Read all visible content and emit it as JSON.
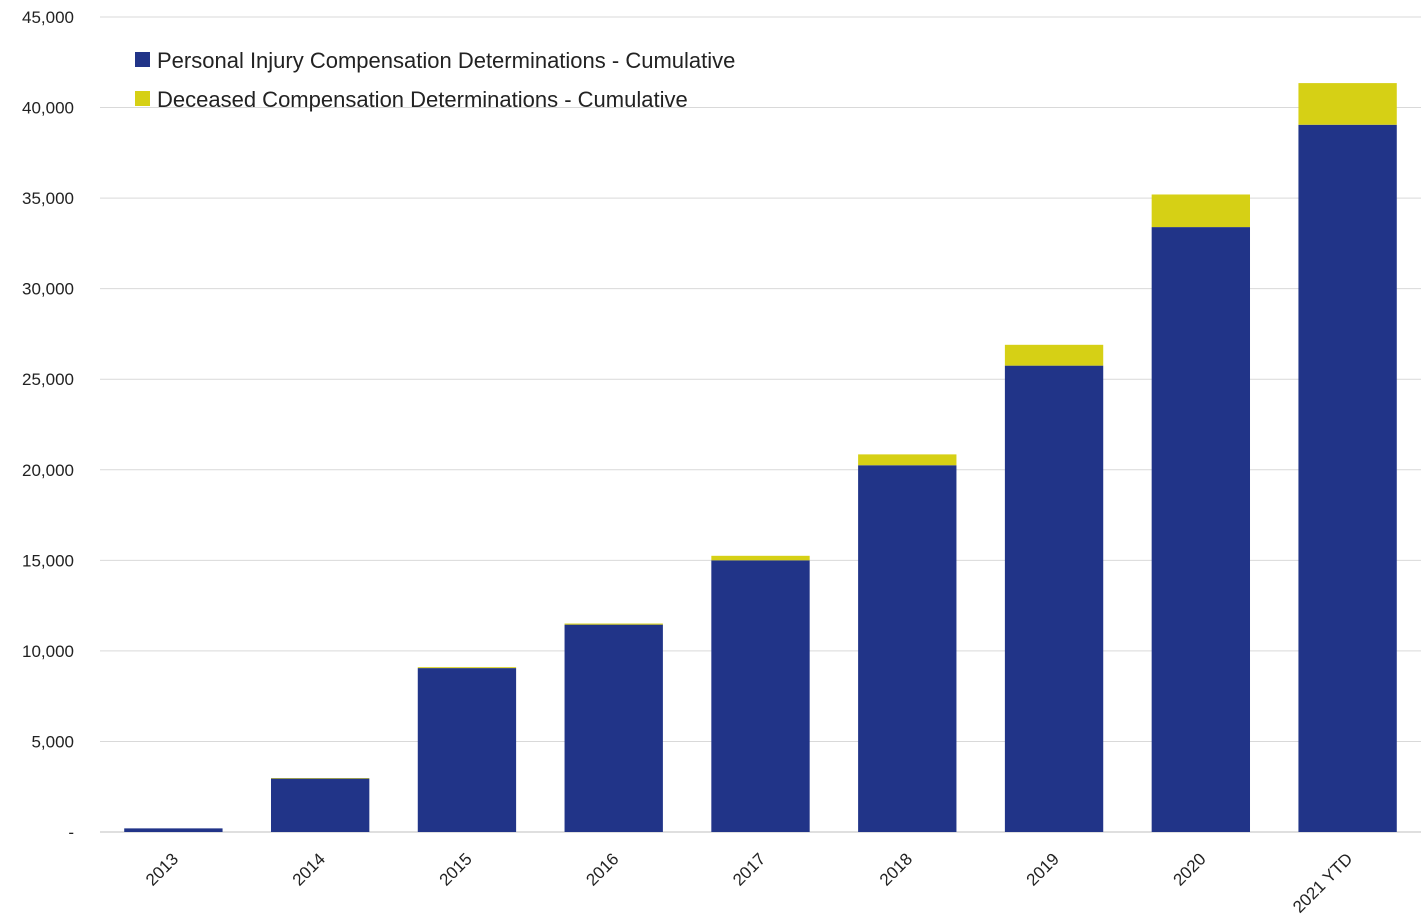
{
  "chart_data": {
    "type": "bar",
    "stacked": true,
    "categories": [
      "2013",
      "2014",
      "2015",
      "2016",
      "2017",
      "2018",
      "2019",
      "2020",
      "2021 YTD"
    ],
    "series": [
      {
        "name": "Personal Injury Compensation Determinations - Cumulative",
        "color": "#213488",
        "values": [
          200,
          2950,
          9050,
          11450,
          15000,
          20250,
          25750,
          33400,
          39050
        ]
      },
      {
        "name": "Deceased Compensation Determinations - Cumulative",
        "color": "#d6d015",
        "values": [
          0,
          30,
          50,
          60,
          250,
          600,
          1150,
          1800,
          2300
        ]
      }
    ],
    "ylim": [
      0,
      45000
    ],
    "yticks": [
      0,
      5000,
      10000,
      15000,
      20000,
      25000,
      30000,
      35000,
      40000,
      45000
    ],
    "ytick_labels": [
      "-",
      "5,000",
      "10,000",
      "15,000",
      "20,000",
      "25,000",
      "30,000",
      "35,000",
      "40,000",
      "45,000"
    ],
    "grid": true,
    "legend_position": "top-left",
    "xlabel": "",
    "ylabel": "",
    "title": ""
  }
}
